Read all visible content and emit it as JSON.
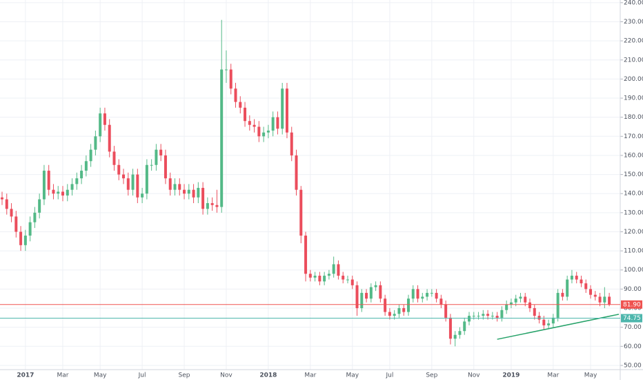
{
  "chart_data": {
    "type": "candlestick",
    "categories": [
      null,
      null,
      null,
      null,
      null,
      "2017",
      null,
      null,
      null,
      null,
      null,
      null,
      null,
      "Mar",
      null,
      null,
      null,
      null,
      null,
      null,
      null,
      "May",
      null,
      null,
      null,
      null,
      null,
      null,
      null,
      null,
      "Jul",
      null,
      null,
      null,
      null,
      null,
      null,
      null,
      null,
      "Sep",
      null,
      null,
      null,
      null,
      null,
      null,
      null,
      null,
      "Nov",
      null,
      null,
      null,
      null,
      null,
      null,
      null,
      null,
      "2018",
      null,
      null,
      null,
      null,
      null,
      null,
      null,
      null,
      "Mar",
      null,
      null,
      null,
      null,
      null,
      null,
      null,
      null,
      "May",
      null,
      null,
      null,
      null,
      null,
      null,
      null,
      "Jul",
      null,
      null,
      null,
      null,
      null,
      null,
      null,
      null,
      "Sep",
      null,
      null,
      null,
      null,
      null,
      null,
      null,
      null,
      "Nov",
      null,
      null,
      null,
      null,
      null,
      null,
      null,
      "2019",
      null,
      null,
      null,
      null,
      null,
      null,
      null,
      null,
      "Mar",
      null,
      null,
      null,
      null,
      null,
      null,
      null,
      "May",
      null,
      null,
      null,
      null
    ],
    "open": [
      138,
      137,
      132,
      128,
      120,
      113,
      118,
      125,
      130,
      137,
      152,
      142,
      140,
      141,
      139,
      142,
      145,
      148,
      152,
      157,
      163,
      170,
      182,
      176,
      162,
      155,
      150,
      148,
      142,
      150,
      138,
      140,
      155,
      155,
      163,
      160,
      148,
      142,
      145,
      142,
      140,
      142,
      138,
      143,
      132,
      135,
      134,
      133,
      205,
      205,
      195,
      188,
      185,
      178,
      176,
      175,
      170,
      172,
      173,
      180,
      174,
      195,
      172,
      160,
      142,
      118,
      98,
      96,
      97,
      94,
      97,
      98,
      103,
      97,
      95,
      95,
      92,
      80,
      88,
      85,
      91,
      92,
      85,
      78,
      76,
      77,
      80,
      78,
      85,
      90,
      85,
      86,
      88,
      88,
      85,
      82,
      75,
      64,
      66,
      68,
      73,
      76,
      76,
      76,
      77,
      76,
      76,
      75,
      79,
      82,
      83,
      85,
      86,
      83,
      80,
      76,
      74,
      71,
      72,
      75,
      88,
      86,
      95,
      97,
      95,
      93,
      90,
      87,
      86,
      83,
      86
    ],
    "high": [
      141,
      140,
      135,
      131,
      123,
      121,
      128,
      133,
      140,
      155,
      155,
      145,
      144,
      144,
      145,
      148,
      151,
      155,
      160,
      166,
      173,
      185,
      185,
      179,
      165,
      158,
      153,
      151,
      153,
      153,
      143,
      158,
      158,
      166,
      166,
      163,
      151,
      148,
      148,
      145,
      145,
      145,
      146,
      146,
      138,
      138,
      142,
      231,
      215,
      208,
      198,
      191,
      188,
      181,
      179,
      178,
      175,
      176,
      183,
      183,
      198,
      198,
      175,
      163,
      144,
      120,
      100,
      99,
      99,
      99,
      100,
      107,
      105,
      99,
      97,
      97,
      94,
      90,
      90,
      93,
      94,
      94,
      87,
      80,
      79,
      82,
      82,
      87,
      92,
      92,
      88,
      90,
      90,
      90,
      87,
      84,
      77,
      68,
      70,
      75,
      78,
      78,
      78,
      79,
      79,
      78,
      78,
      81,
      84,
      85,
      87,
      88,
      88,
      85,
      82,
      78,
      76,
      74,
      77,
      90,
      90,
      97,
      100,
      99,
      97,
      95,
      92,
      89,
      88,
      91,
      88
    ],
    "low": [
      134,
      129,
      125,
      117,
      110,
      110,
      115,
      122,
      127,
      134,
      139,
      137,
      137,
      136,
      136,
      139,
      142,
      145,
      149,
      154,
      160,
      167,
      173,
      159,
      152,
      147,
      145,
      139,
      139,
      135,
      135,
      137,
      152,
      152,
      157,
      145,
      139,
      139,
      139,
      137,
      137,
      135,
      135,
      129,
      129,
      131,
      130,
      130,
      198,
      192,
      185,
      182,
      175,
      173,
      172,
      167,
      167,
      169,
      170,
      171,
      171,
      169,
      157,
      139,
      114,
      94,
      94,
      94,
      92,
      92,
      95,
      96,
      95,
      93,
      93,
      90,
      76,
      78,
      83,
      83,
      89,
      83,
      76,
      74,
      74,
      75,
      76,
      76,
      83,
      83,
      83,
      84,
      86,
      83,
      80,
      73,
      61,
      60,
      64,
      66,
      71,
      74,
      74,
      74,
      74,
      74,
      73,
      73,
      77,
      80,
      81,
      83,
      81,
      78,
      74,
      72,
      69,
      69,
      70,
      73,
      84,
      84,
      93,
      93,
      91,
      88,
      85,
      84,
      81,
      80,
      81
    ],
    "close": [
      137,
      132,
      128,
      120,
      113,
      118,
      125,
      130,
      137,
      152,
      142,
      140,
      141,
      139,
      142,
      145,
      148,
      152,
      157,
      163,
      170,
      182,
      176,
      162,
      155,
      150,
      148,
      142,
      150,
      138,
      140,
      155,
      155,
      163,
      160,
      148,
      142,
      145,
      142,
      140,
      142,
      138,
      143,
      132,
      135,
      134,
      133,
      205,
      205,
      195,
      188,
      185,
      178,
      176,
      175,
      170,
      172,
      173,
      180,
      174,
      195,
      172,
      160,
      142,
      118,
      98,
      96,
      97,
      94,
      97,
      98,
      103,
      97,
      95,
      95,
      92,
      80,
      88,
      85,
      91,
      92,
      85,
      78,
      76,
      77,
      80,
      78,
      85,
      90,
      85,
      86,
      88,
      88,
      85,
      82,
      75,
      64,
      66,
      68,
      73,
      76,
      76,
      76,
      77,
      76,
      76,
      75,
      79,
      82,
      83,
      85,
      86,
      83,
      80,
      76,
      74,
      71,
      72,
      75,
      88,
      86,
      95,
      97,
      95,
      93,
      90,
      87,
      86,
      83,
      86,
      81.9
    ],
    "up_color": "#53b987",
    "down_color": "#eb4d5c",
    "ylim": [
      47.8,
      241.4
    ],
    "yticks": [
      {
        "value": 50,
        "label": "50.00"
      },
      {
        "value": 60,
        "label": "60.00"
      },
      {
        "value": 70,
        "label": "70.00"
      },
      {
        "value": 80,
        "label": "80.00"
      },
      {
        "value": 90,
        "label": "90.00"
      },
      {
        "value": 100,
        "label": "100.00"
      },
      {
        "value": 110,
        "label": "110.00"
      },
      {
        "value": 120,
        "label": "120.00"
      },
      {
        "value": 130,
        "label": "130.00"
      },
      {
        "value": 140,
        "label": "140.00"
      },
      {
        "value": 150,
        "label": "150.00"
      },
      {
        "value": 160,
        "label": "160.00"
      },
      {
        "value": 170,
        "label": "170.00"
      },
      {
        "value": 180,
        "label": "180.00"
      },
      {
        "value": 190,
        "label": "190.00"
      },
      {
        "value": 200,
        "label": "200.00"
      },
      {
        "value": 210,
        "label": "210.00"
      },
      {
        "value": 220,
        "label": "220.00"
      },
      {
        "value": 230,
        "label": "230.00"
      },
      {
        "value": 240,
        "label": "240.00"
      }
    ],
    "grid": true,
    "price_lines": [
      {
        "value": 81.9,
        "label": "81.90",
        "color": "#ef5350"
      },
      {
        "value": 74.75,
        "label": "74.75",
        "color": "#4db6ac"
      }
    ],
    "trendline": {
      "values": [
        63.7,
        76.8
      ],
      "color": "#26a269"
    }
  }
}
